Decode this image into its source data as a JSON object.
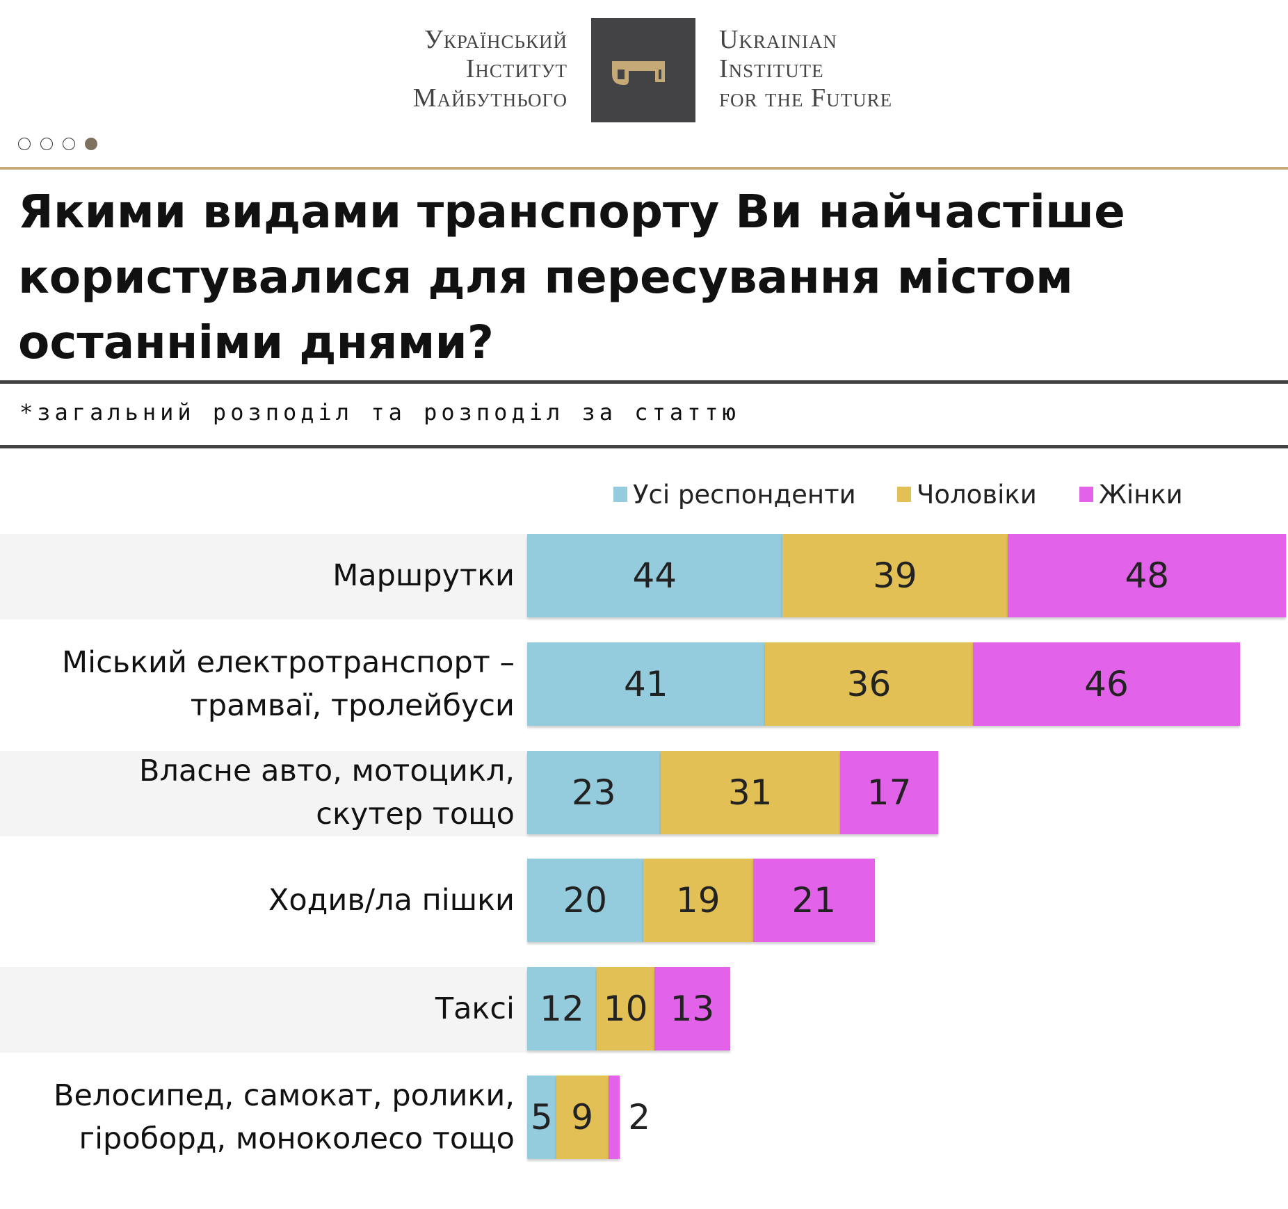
{
  "header": {
    "logo_ua_lines": [
      "Український",
      "Інститут",
      "Майбутнього"
    ],
    "logo_en_lines": [
      "Ukrainian",
      "Institute",
      "for the Future"
    ],
    "brand_colors": {
      "logo_box": "#434244",
      "key": "#c5aa77",
      "rule": "#c5aa77"
    },
    "pagination": {
      "total": 4,
      "active_index": 3
    }
  },
  "title": "Якими видами транспорту Ви найчастіше користувалися для пересування містом останніми днями?",
  "subtitle": "*загальний розподіл та розподіл за статтю",
  "chart_data": {
    "type": "bar",
    "orientation": "horizontal-stacked",
    "title": "Якими видами транспорту Ви найчастіше користувалися для пересування містом останніми днями?",
    "subtitle": "*загальний розподіл та розподіл за статтю",
    "legend_position": "top-right",
    "categories": [
      [
        "Маршрутки"
      ],
      [
        "Міський електротранспорт –",
        "трамваї, тролейбуси"
      ],
      [
        "Власне авто, мотоцикл,",
        "скутер тощо"
      ],
      [
        "Ходив/ла пішки"
      ],
      [
        "Таксі"
      ],
      [
        "Велосипед, самокат, ролики,",
        "гіроборд, моноколесо тощо"
      ]
    ],
    "series": [
      {
        "name": "Усі респонденти",
        "color": "#94cbdd",
        "values": [
          44,
          41,
          23,
          20,
          12,
          5
        ]
      },
      {
        "name": "Чоловіки",
        "color": "#e2c055",
        "values": [
          39,
          36,
          31,
          19,
          10,
          9
        ]
      },
      {
        "name": "Жінки",
        "color": "#e362ea",
        "values": [
          48,
          46,
          17,
          21,
          13,
          2
        ]
      }
    ],
    "grid": false
  }
}
